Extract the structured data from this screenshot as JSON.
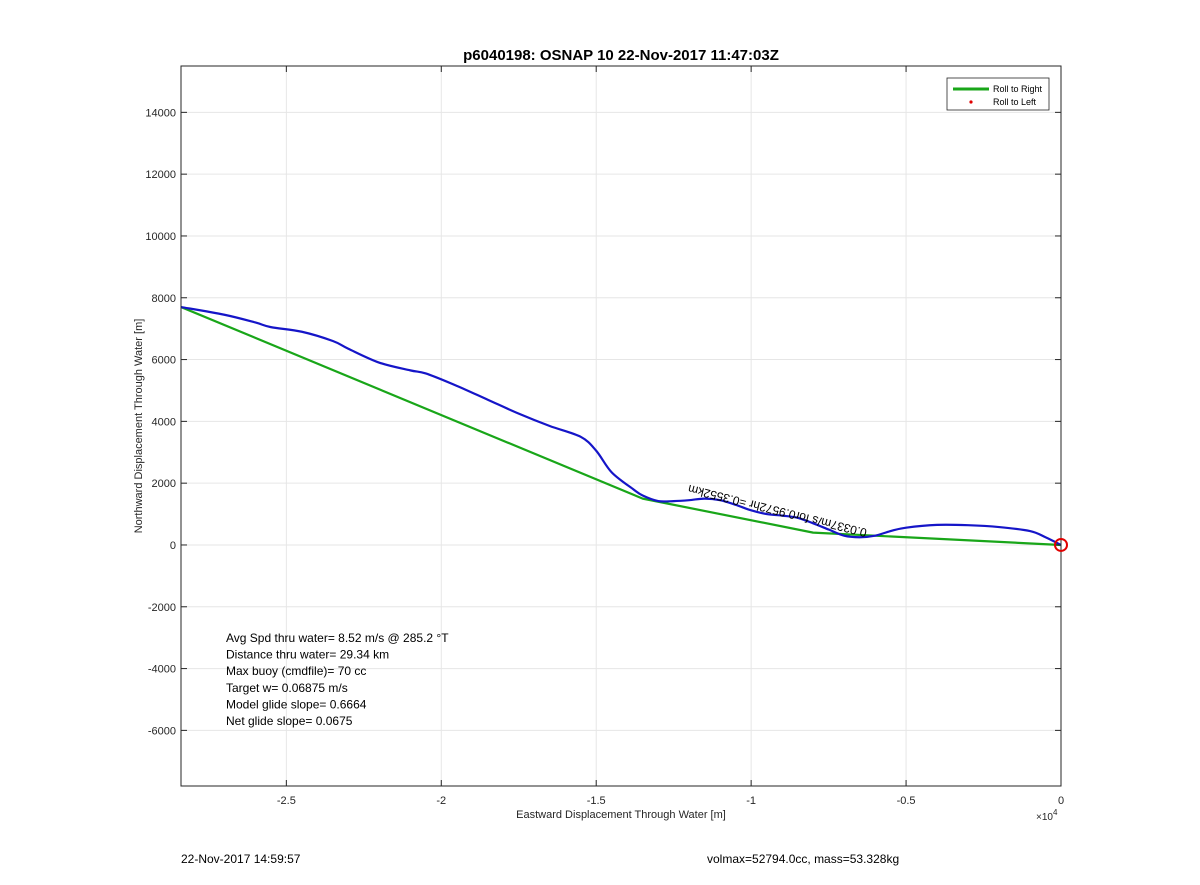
{
  "chart_data": {
    "type": "line",
    "title": "p6040198: OSNAP 10 22-Nov-2017 11:47:03Z",
    "xlabel": "Eastward Displacement Through Water [m]",
    "ylabel": "Northward Displacement Through Water [m]",
    "x_exponent_label": "×10",
    "x_exponent_power": "4",
    "xlim": [
      -28400,
      0
    ],
    "ylim": [
      -7800,
      15500
    ],
    "grid": true,
    "x_ticks": [
      -25000,
      -20000,
      -15000,
      -10000,
      -5000,
      0
    ],
    "x_tick_labels": [
      "-2.5",
      "-2",
      "-1.5",
      "-1",
      "-0.5",
      "0"
    ],
    "y_ticks": [
      -6000,
      -4000,
      -2000,
      0,
      2000,
      4000,
      6000,
      8000,
      10000,
      12000,
      14000
    ],
    "y_tick_labels": [
      "-6000",
      "-4000",
      "-2000",
      "0",
      "2000",
      "4000",
      "6000",
      "8000",
      "10000",
      "12000",
      "14000"
    ],
    "legend_position": "top-right",
    "legend": [
      {
        "name": "Roll to Right",
        "color": "#19a619",
        "marker": "line"
      },
      {
        "name": "Roll to Left",
        "color": "#e00000",
        "marker": "dot"
      }
    ],
    "series": [
      {
        "name": "Roll to Right",
        "color": "#19a619",
        "x": [
          -28400,
          -13500,
          -8000,
          0
        ],
        "y": [
          7700,
          1500,
          400,
          0
        ]
      },
      {
        "color": "#1515c8",
        "x": [
          -28400,
          -27000,
          -26000,
          -25500,
          -24500,
          -23500,
          -23000,
          -22000,
          -21000,
          -20500,
          -19500,
          -18500,
          -17500,
          -16500,
          -15500,
          -15000,
          -14500,
          -13800,
          -13500,
          -13000,
          -12500,
          -12000,
          -11500,
          -11000,
          -10500,
          -10000,
          -9500,
          -9000,
          -8500,
          -8000,
          -7500,
          -7000,
          -6500,
          -6000,
          -5500,
          -5000,
          -4000,
          -3000,
          -2000,
          -1000,
          -500,
          0
        ],
        "y": [
          7700,
          7450,
          7200,
          7050,
          6900,
          6600,
          6350,
          5900,
          5650,
          5550,
          5150,
          4700,
          4250,
          3850,
          3500,
          3050,
          2350,
          1800,
          1600,
          1420,
          1420,
          1450,
          1500,
          1450,
          1300,
          1120,
          1000,
          950,
          880,
          700,
          500,
          300,
          250,
          300,
          450,
          560,
          650,
          640,
          580,
          450,
          250,
          0
        ]
      }
    ],
    "end_marker": {
      "x": 0,
      "y": 0,
      "color": "#e00000"
    },
    "rotated_annotation": {
      "text": "0.0337m/s for0.9572hr =0.3552km",
      "x": -12000,
      "y": 1950,
      "angle": 14
    },
    "stats": [
      "Avg Spd thru water=  8.52 m/s @ 285.2 °T",
      "Distance thru water= 29.34 km",
      "Max buoy (cmdfile)= 70 cc",
      "Target w= 0.06875 m/s",
      "Model glide slope= 0.6664",
      "Net glide slope= 0.0675"
    ]
  },
  "footer": {
    "left": "22-Nov-2017 14:59:57",
    "right": "volmax=52794.0cc, mass=53.328kg"
  }
}
